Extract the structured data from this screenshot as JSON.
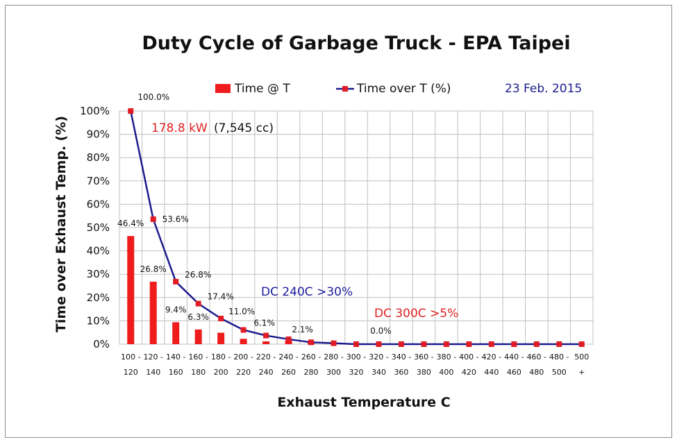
{
  "colors": {
    "bar": "#ee1c1c",
    "line": "#1a1a8c",
    "marker": "#e01c24",
    "grid": "#bfbfbf",
    "date": "#1a1a8c",
    "annotation_red": "#e02020",
    "annotation_blue": "#1a1a9c"
  },
  "chart_data": {
    "type": "bar+line",
    "title": "Duty Cycle of Garbage Truck - EPA Taipei",
    "date": "23 Feb. 2015",
    "xlabel": "Exhaust Temperature C",
    "ylabel": "Time over Exhaust Temp. (%)",
    "ylim": [
      0,
      100
    ],
    "yticks": [
      "0%",
      "10%",
      "20%",
      "30%",
      "40%",
      "50%",
      "60%",
      "70%",
      "80%",
      "90%",
      "100%"
    ],
    "grid": true,
    "legend_position": "top",
    "categories_top": [
      "100 -",
      "120 -",
      "140 -",
      "160 -",
      "180 -",
      "200 -",
      "220 -",
      "240 -",
      "260 -",
      "280 -",
      "300 -",
      "320 -",
      "340 -",
      "360 -",
      "380 -",
      "400 -",
      "420 -",
      "440 -",
      "460 -",
      "480 -",
      "500"
    ],
    "categories_bottom": [
      "120",
      "140",
      "160",
      "180",
      "200",
      "220",
      "240",
      "260",
      "280",
      "300",
      "320",
      "340",
      "360",
      "380",
      "400",
      "420",
      "440",
      "460",
      "480",
      "500",
      "+"
    ],
    "series": [
      {
        "name": "Time @ T",
        "type": "bar",
        "values": [
          46.4,
          26.8,
          9.4,
          6.3,
          4.9,
          2.3,
          1.2,
          1.5,
          0.8,
          0.4,
          0.1,
          0,
          0,
          0,
          0,
          0,
          0,
          0,
          0,
          0,
          0
        ]
      },
      {
        "name": "Time over T (%)",
        "type": "line",
        "values": [
          100.0,
          53.6,
          26.8,
          17.4,
          11.0,
          6.1,
          3.7,
          2.1,
          0.8,
          0.4,
          0.0,
          0.0,
          0.0,
          0.0,
          0.0,
          0.0,
          0.0,
          0.0,
          0.0,
          0.0,
          0.0
        ]
      }
    ],
    "bar_labels": [
      {
        "index": 0,
        "text": "46.4%"
      },
      {
        "index": 1,
        "text": "26.8%"
      },
      {
        "index": 2,
        "text": "9.4%"
      },
      {
        "index": 3,
        "text": "6.3%"
      }
    ],
    "line_labels": [
      {
        "index": 0,
        "text": "100.0%"
      },
      {
        "index": 1,
        "text": "53.6%"
      },
      {
        "index": 2,
        "text": "26.8%"
      },
      {
        "index": 3,
        "text": "17.4%"
      },
      {
        "index": 4,
        "text": "11.0%"
      },
      {
        "index": 5,
        "text": "6.1%"
      },
      {
        "index": 7,
        "text": "2.1%"
      },
      {
        "index": 11,
        "text": "0.0%"
      }
    ],
    "annotations": {
      "power": "178.8 kW",
      "displacement": "(7,545 cc)",
      "dc240": "DC 240C >30%",
      "dc300": "DC 300C >5%"
    }
  }
}
